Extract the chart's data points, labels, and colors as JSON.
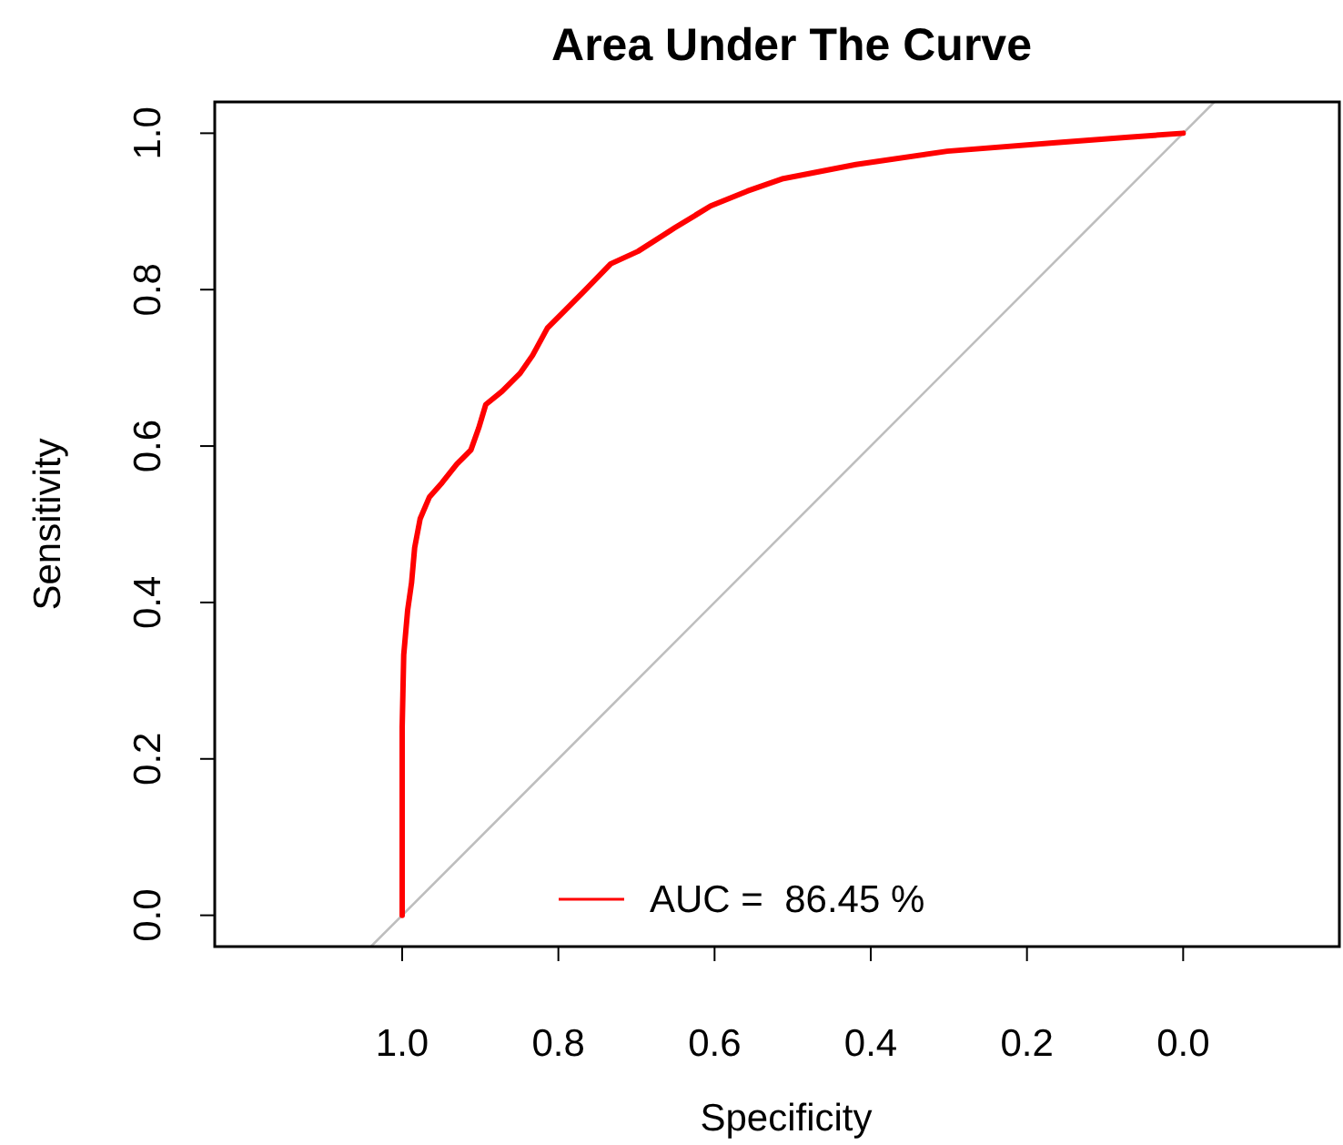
{
  "chart_data": {
    "type": "line",
    "title": "Area Under The Curve",
    "xlabel": "Specificity",
    "ylabel": "Sensitivity",
    "xlim": [
      1.24,
      -0.2
    ],
    "ylim": [
      -0.04,
      1.04
    ],
    "xticks": [
      {
        "value": 1,
        "label": "1.0"
      },
      {
        "value": 0.8,
        "label": "0.8"
      },
      {
        "value": 0.6,
        "label": "0.6"
      },
      {
        "value": 0.4,
        "label": "0.4"
      },
      {
        "value": 0.2,
        "label": "0.2"
      },
      {
        "value": 0,
        "label": "0.0"
      }
    ],
    "yticks": [
      {
        "value": 0,
        "label": "0.0"
      },
      {
        "value": 0.2,
        "label": "0.2"
      },
      {
        "value": 0.4,
        "label": "0.4"
      },
      {
        "value": 0.6,
        "label": "0.6"
      },
      {
        "value": 0.8,
        "label": "0.8"
      },
      {
        "value": 1,
        "label": "1.0"
      }
    ],
    "grid": false,
    "legend": "bottom",
    "marker": "none",
    "line_style": "solid",
    "series": [
      {
        "color": "#bebebe",
        "x": [
          1.04,
          -0.04
        ],
        "values": [
          -0.04,
          1.04
        ]
      },
      {
        "name": "AUC =  86.45 %",
        "color": "#ff0000",
        "x": [
          1,
          1,
          0.998,
          0.993,
          0.988,
          0.984,
          0.977,
          0.965,
          0.949,
          0.93,
          0.912,
          0.902,
          0.893,
          0.872,
          0.849,
          0.833,
          0.814,
          0.791,
          0.767,
          0.733,
          0.698,
          0.651,
          0.605,
          0.558,
          0.512,
          0.419,
          0.302,
          0.163,
          0.07,
          0
        ],
        "values": [
          0,
          0.24,
          0.333,
          0.39,
          0.425,
          0.47,
          0.507,
          0.535,
          0.553,
          0.577,
          0.595,
          0.623,
          0.653,
          0.67,
          0.693,
          0.716,
          0.751,
          0.774,
          0.798,
          0.833,
          0.849,
          0.879,
          0.907,
          0.926,
          0.942,
          0.96,
          0.977,
          0.988,
          0.995,
          1
        ]
      }
    ]
  }
}
